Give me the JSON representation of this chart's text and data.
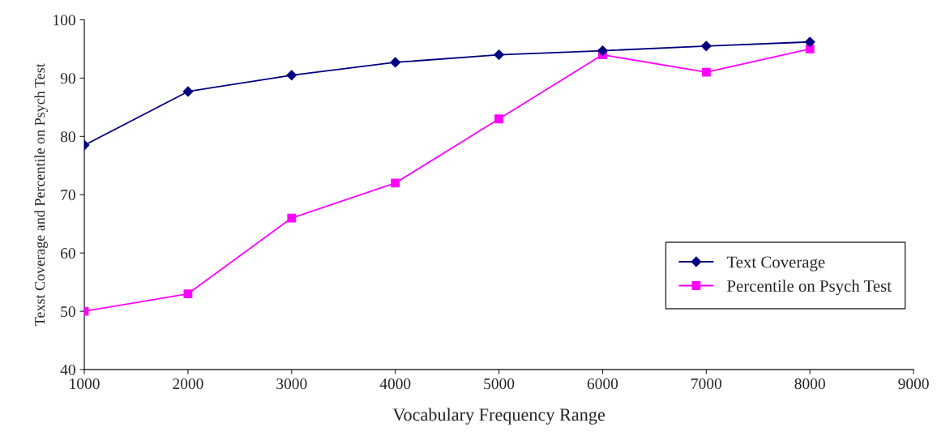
{
  "chart_data": {
    "type": "line",
    "xlabel": "Vocabulary Frequency Range",
    "ylabel": "Texst Coverage and Percentile on Psych Test",
    "x": [
      1000,
      2000,
      3000,
      4000,
      5000,
      6000,
      7000,
      8000
    ],
    "series": [
      {
        "name": "Text Coverage",
        "color": "#000080",
        "marker": "diamond",
        "values": [
          78.5,
          87.7,
          90.5,
          92.7,
          94,
          94.7,
          95.5,
          96.2
        ]
      },
      {
        "name": "Percentile on Psych Test",
        "color": "#ff00ff",
        "marker": "square",
        "values": [
          50,
          53,
          66,
          72,
          83,
          94,
          91,
          95
        ]
      }
    ],
    "xlim": [
      1000,
      9000
    ],
    "xticks": [
      1000,
      2000,
      3000,
      4000,
      5000,
      6000,
      7000,
      8000,
      9000
    ],
    "ylim": [
      40,
      100
    ],
    "yticks": [
      40,
      50,
      60,
      70,
      80,
      90,
      100
    ],
    "grid": false,
    "legend": "lower right",
    "line_style": "solid"
  }
}
